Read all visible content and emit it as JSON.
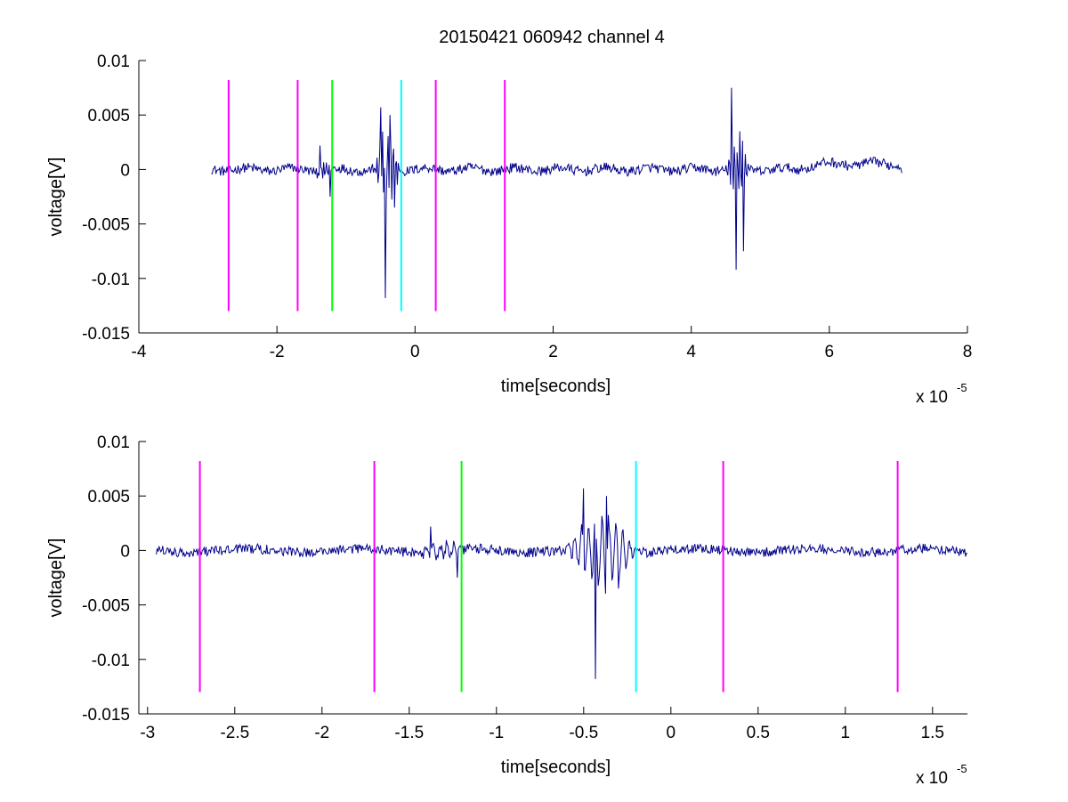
{
  "figure": {
    "title": "20150421 060942 channel 4"
  },
  "chart_data": [
    {
      "type": "line",
      "title": "20150421 060942 channel 4",
      "xlabel": "time[seconds]",
      "ylabel": "voltage[V]",
      "x_multiplier": "x 10",
      "x_multiplier_exp": "-5",
      "xlim": [
        -4,
        8
      ],
      "ylim": [
        -0.015,
        0.01
      ],
      "xticks": [
        -4,
        -2,
        0,
        2,
        4,
        6,
        8
      ],
      "xtick_labels": [
        "-4",
        "-2",
        "0",
        "2",
        "4",
        "6",
        "8"
      ],
      "yticks": [
        -0.015,
        -0.01,
        -0.005,
        0,
        0.005,
        0.01
      ],
      "ytick_labels": [
        "-0.015",
        "-0.01",
        "-0.005",
        "0",
        "0.005",
        "0.01"
      ],
      "grid": false,
      "signal": {
        "color": "#00008b",
        "x_start": -2.95,
        "x_end": 7.05,
        "bursts": [
          {
            "x": [
              -1.45,
              -1.15
            ],
            "peaks": [
              0.0022,
              -0.0025
            ]
          },
          {
            "x": [
              -0.6,
              -0.2
            ],
            "peaks": [
              0.0057,
              -0.0118,
              0.005,
              -0.0035
            ]
          },
          {
            "x": [
              4.5,
              4.85
            ],
            "peaks": [
              0.0075,
              -0.0092,
              0.0035,
              -0.0075
            ]
          }
        ],
        "noise_amplitude": 0.0005,
        "drift_region": {
          "x": [
            5.5,
            7.05
          ],
          "offset": 0.0005
        }
      },
      "markers": [
        {
          "x": -2.7,
          "color": "#ff00ff",
          "y": [
            -0.013,
            0.0082
          ]
        },
        {
          "x": -1.7,
          "color": "#ff00ff",
          "y": [
            -0.013,
            0.0082
          ]
        },
        {
          "x": -1.2,
          "color": "#00ff00",
          "y": [
            -0.013,
            0.0082
          ]
        },
        {
          "x": -0.2,
          "color": "#00ffff",
          "y": [
            -0.013,
            0.0082
          ]
        },
        {
          "x": 0.3,
          "color": "#ff00ff",
          "y": [
            -0.013,
            0.0082
          ]
        },
        {
          "x": 1.3,
          "color": "#ff00ff",
          "y": [
            -0.013,
            0.0082
          ]
        }
      ]
    },
    {
      "type": "line",
      "title": "",
      "xlabel": "time[seconds]",
      "ylabel": "voltage[V]",
      "x_multiplier": "x 10",
      "x_multiplier_exp": "-5",
      "xlim": [
        -3.05,
        1.7
      ],
      "ylim": [
        -0.015,
        0.01
      ],
      "xticks": [
        -3,
        -2.5,
        -2,
        -1.5,
        -1,
        -0.5,
        0,
        0.5,
        1,
        1.5
      ],
      "xtick_labels": [
        "-3",
        "-2.5",
        "-2",
        "-1.5",
        "-1",
        "-0.5",
        "0",
        "0.5",
        "1",
        "1.5"
      ],
      "yticks": [
        -0.015,
        -0.01,
        -0.005,
        0,
        0.005,
        0.01
      ],
      "ytick_labels": [
        "-0.015",
        "-0.01",
        "-0.005",
        "0",
        "0.005",
        "0.01"
      ],
      "grid": false,
      "signal": {
        "color": "#00008b",
        "x_start": -2.95,
        "x_end": 1.7,
        "bursts": [
          {
            "x": [
              -1.45,
              -1.15
            ],
            "peaks": [
              0.0022,
              -0.0025
            ]
          },
          {
            "x": [
              -0.6,
              -0.2
            ],
            "peaks": [
              0.0057,
              -0.0118,
              0.005,
              -0.0035
            ]
          }
        ],
        "noise_amplitude": 0.0005,
        "drift_region": null
      },
      "markers": [
        {
          "x": -2.7,
          "color": "#ff00ff",
          "y": [
            -0.013,
            0.0082
          ]
        },
        {
          "x": -1.7,
          "color": "#ff00ff",
          "y": [
            -0.013,
            0.0082
          ]
        },
        {
          "x": -1.2,
          "color": "#00ff00",
          "y": [
            -0.013,
            0.0082
          ]
        },
        {
          "x": -0.2,
          "color": "#00ffff",
          "y": [
            -0.013,
            0.0082
          ]
        },
        {
          "x": 0.3,
          "color": "#ff00ff",
          "y": [
            -0.013,
            0.0082
          ]
        },
        {
          "x": 1.3,
          "color": "#ff00ff",
          "y": [
            -0.013,
            0.0082
          ]
        }
      ]
    }
  ]
}
